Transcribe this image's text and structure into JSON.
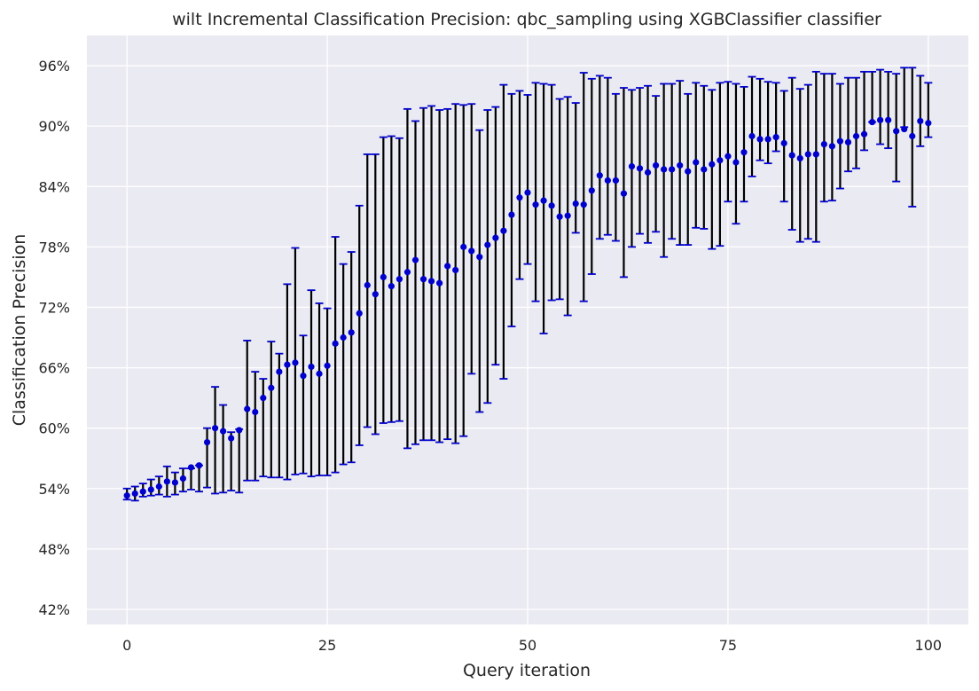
{
  "chart_data": {
    "type": "scatter",
    "title": "wilt Incremental Classification Precision: qbc_sampling using XGBClassifier classifier",
    "xlabel": "Query iteration",
    "ylabel": "Classification Precision",
    "xlim": [
      -5,
      105
    ],
    "ylim": [
      0.405,
      0.99
    ],
    "x_ticks": [
      0,
      25,
      50,
      75,
      100
    ],
    "x_tick_labels": [
      "0",
      "25",
      "50",
      "75",
      "100"
    ],
    "y_ticks": [
      0.42,
      0.48,
      0.54,
      0.6,
      0.66,
      0.72,
      0.78,
      0.84,
      0.9,
      0.96
    ],
    "y_tick_labels": [
      "42%",
      "48%",
      "54%",
      "60%",
      "66%",
      "72%",
      "78%",
      "84%",
      "90%",
      "96%"
    ],
    "grid": true,
    "background": "#eaeaf2",
    "grid_color": "#ffffff",
    "point_color": "#0000cd",
    "errorbar_color": "#000000",
    "cap_color": "#0000cd",
    "series": [
      {
        "x": [
          0,
          1,
          2,
          3,
          4,
          5,
          6,
          7,
          8,
          9,
          10,
          11,
          12,
          13,
          14,
          15,
          16,
          17,
          18,
          19,
          20,
          21,
          22,
          23,
          24,
          25,
          26,
          27,
          28,
          29,
          30,
          31,
          32,
          33,
          34,
          35,
          36,
          37,
          38,
          39,
          40,
          41,
          42,
          43,
          44,
          45,
          46,
          47,
          48,
          49,
          50,
          51,
          52,
          53,
          54,
          55,
          56,
          57,
          58,
          59,
          60,
          61,
          62,
          63,
          64,
          65,
          66,
          67,
          68,
          69,
          70,
          71,
          72,
          73,
          74,
          75,
          76,
          77,
          78,
          79,
          80,
          81,
          82,
          83,
          84,
          85,
          86,
          87,
          88,
          89,
          90,
          91,
          92,
          93,
          94,
          95,
          96,
          97,
          98,
          99,
          100
        ],
        "y": [
          0.533,
          0.535,
          0.537,
          0.539,
          0.542,
          0.547,
          0.546,
          0.55,
          0.561,
          0.563,
          0.586,
          0.6,
          0.597,
          0.59,
          0.598,
          0.619,
          0.616,
          0.63,
          0.64,
          0.656,
          0.663,
          0.665,
          0.652,
          0.661,
          0.654,
          0.662,
          0.684,
          0.69,
          0.695,
          0.714,
          0.742,
          0.733,
          0.75,
          0.741,
          0.748,
          0.755,
          0.767,
          0.748,
          0.746,
          0.744,
          0.761,
          0.757,
          0.78,
          0.776,
          0.77,
          0.782,
          0.789,
          0.796,
          0.812,
          0.829,
          0.834,
          0.822,
          0.826,
          0.821,
          0.81,
          0.811,
          0.823,
          0.822,
          0.836,
          0.851,
          0.846,
          0.846,
          0.833,
          0.86,
          0.858,
          0.854,
          0.861,
          0.857,
          0.857,
          0.861,
          0.855,
          0.864,
          0.857,
          0.862,
          0.866,
          0.87,
          0.864,
          0.874,
          0.89,
          0.887,
          0.887,
          0.889,
          0.883,
          0.871,
          0.868,
          0.872,
          0.872,
          0.882,
          0.88,
          0.885,
          0.884,
          0.89,
          0.892,
          0.904,
          0.906,
          0.906,
          0.895,
          0.897,
          0.89,
          0.905,
          0.903
        ],
        "err_low": [
          0.529,
          0.528,
          0.532,
          0.533,
          0.534,
          0.532,
          0.534,
          0.537,
          0.539,
          0.537,
          0.541,
          0.535,
          0.536,
          0.538,
          0.536,
          0.548,
          0.548,
          0.552,
          0.551,
          0.551,
          0.549,
          0.554,
          0.555,
          0.552,
          0.553,
          0.553,
          0.556,
          0.564,
          0.566,
          0.583,
          0.601,
          0.594,
          0.605,
          0.606,
          0.607,
          0.58,
          0.584,
          0.588,
          0.588,
          0.586,
          0.589,
          0.585,
          0.592,
          0.654,
          0.616,
          0.625,
          0.663,
          0.649,
          0.701,
          0.748,
          0.763,
          0.726,
          0.694,
          0.727,
          0.728,
          0.712,
          0.794,
          0.726,
          0.753,
          0.788,
          0.792,
          0.786,
          0.75,
          0.78,
          0.793,
          0.784,
          0.795,
          0.77,
          0.788,
          0.782,
          0.782,
          0.799,
          0.798,
          0.778,
          0.781,
          0.825,
          0.803,
          0.825,
          0.85,
          0.866,
          0.863,
          0.875,
          0.825,
          0.797,
          0.785,
          0.788,
          0.785,
          0.825,
          0.826,
          0.838,
          0.855,
          0.858,
          0.876,
          0.904,
          0.882,
          0.878,
          0.845,
          0.899,
          0.82,
          0.88,
          0.889
        ],
        "err_high": [
          0.54,
          0.542,
          0.545,
          0.549,
          0.552,
          0.562,
          0.556,
          0.56,
          0.56,
          0.563,
          0.6,
          0.641,
          0.623,
          0.596,
          0.599,
          0.687,
          0.656,
          0.649,
          0.686,
          0.674,
          0.743,
          0.779,
          0.692,
          0.737,
          0.724,
          0.719,
          0.79,
          0.763,
          0.775,
          0.821,
          0.872,
          0.872,
          0.889,
          0.89,
          0.888,
          0.917,
          0.905,
          0.918,
          0.92,
          0.916,
          0.917,
          0.922,
          0.921,
          0.922,
          0.896,
          0.916,
          0.919,
          0.941,
          0.932,
          0.935,
          0.931,
          0.943,
          0.942,
          0.941,
          0.927,
          0.929,
          0.923,
          0.953,
          0.947,
          0.95,
          0.948,
          0.932,
          0.938,
          0.936,
          0.938,
          0.94,
          0.93,
          0.942,
          0.942,
          0.945,
          0.932,
          0.943,
          0.94,
          0.936,
          0.943,
          0.944,
          0.942,
          0.939,
          0.949,
          0.947,
          0.944,
          0.943,
          0.935,
          0.948,
          0.937,
          0.941,
          0.954,
          0.952,
          0.952,
          0.942,
          0.948,
          0.948,
          0.954,
          0.954,
          0.956,
          0.954,
          0.952,
          0.958,
          0.958,
          0.95,
          0.943
        ]
      }
    ]
  }
}
